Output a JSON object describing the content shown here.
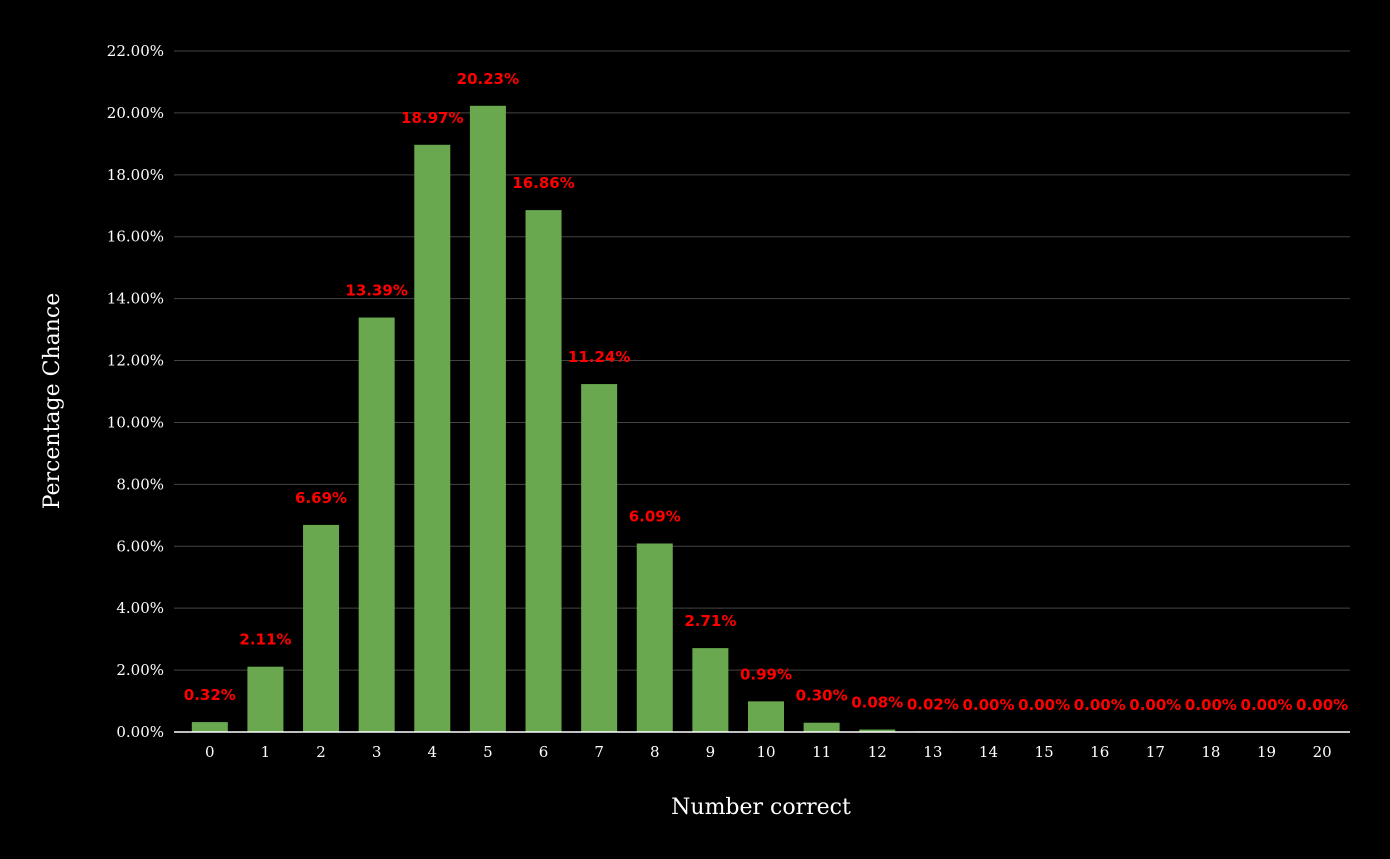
{
  "chart_data": {
    "type": "bar",
    "title": "",
    "xlabel": "Number correct",
    "ylabel": "Percentage Chance",
    "categories": [
      "0",
      "1",
      "2",
      "3",
      "4",
      "5",
      "6",
      "7",
      "8",
      "9",
      "10",
      "11",
      "12",
      "13",
      "14",
      "15",
      "16",
      "17",
      "18",
      "19",
      "20"
    ],
    "values": [
      0.32,
      2.11,
      6.69,
      13.39,
      18.97,
      20.23,
      16.86,
      11.24,
      6.09,
      2.71,
      0.99,
      0.3,
      0.08,
      0.02,
      0.0,
      0.0,
      0.0,
      0.0,
      0.0,
      0.0,
      0.0
    ],
    "data_labels": [
      "0.32%",
      "2.11%",
      "6.69%",
      "13.39%",
      "18.97%",
      "20.23%",
      "16.86%",
      "11.24%",
      "6.09%",
      "2.71%",
      "0.99%",
      "0.30%",
      "0.08%",
      "0.02%",
      "0.00%",
      "0.00%",
      "0.00%",
      "0.00%",
      "0.00%",
      "0.00%",
      "0.00%"
    ],
    "ylim": [
      0,
      22
    ],
    "yticks": [
      0,
      2,
      4,
      6,
      8,
      10,
      12,
      14,
      16,
      18,
      20,
      22
    ],
    "ytick_labels": [
      "0.00%",
      "2.00%",
      "4.00%",
      "6.00%",
      "8.00%",
      "10.00%",
      "12.00%",
      "14.00%",
      "16.00%",
      "18.00%",
      "20.00%",
      "22.00%"
    ],
    "grid": true,
    "legend": "none",
    "colors": {
      "background": "#000000",
      "bar": "#6aa84f",
      "data_label": "#ff0000",
      "gridline": "#444444",
      "axis_line": "#ffffff",
      "text": "#ffffff"
    }
  }
}
